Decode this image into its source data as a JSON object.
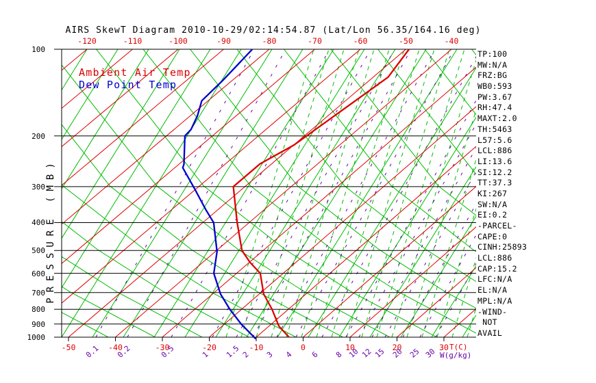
{
  "title": "AIRS SkewT Diagram 2010-10-29/02:14:54.87 (Lat/Lon 56.35/164.16 deg)",
  "colors": {
    "isotherm_red": "#dd0000",
    "adiabat_green": "#00bb00",
    "mixing_purple": "#6600aa",
    "ambient_red": "#dd0000",
    "dewpoint_blue": "#0000cc",
    "axis_black": "#000000"
  },
  "legend": {
    "ambient": "Ambient Air Temp",
    "dew": "Dew Point Temp"
  },
  "axes": {
    "pressure_label": "PRESSURE (MB)",
    "pressure_ticks": [
      100,
      200,
      300,
      400,
      500,
      600,
      700,
      800,
      900,
      1000
    ],
    "top_temp_ticks": [
      -120,
      -110,
      -100,
      -90,
      -80,
      -70,
      -60,
      -50,
      -40
    ],
    "bottom_temp_ticks": [
      -50,
      -40,
      -30,
      -20,
      -10,
      0,
      10,
      20,
      30
    ],
    "bottom_temp_unit": "T(C)",
    "mixing_ratio_ticks": [
      "0.1",
      "0.2",
      "0.5",
      "1",
      "1.5",
      "2",
      "3",
      "4",
      "6",
      "8",
      "10",
      "12",
      "15",
      "20",
      "25",
      "30"
    ],
    "mixing_ratio_unit": "W(g/kg)"
  },
  "stats": {
    "items": [
      "TP:100",
      "MW:N/A",
      "FRZ:BG",
      "WB0:593",
      "PW:3.67",
      "RH:47.4",
      "MAXT:2.0",
      "TH:5463",
      "L57:5.6",
      "LCL:886",
      "LI:13.6",
      "SI:12.2",
      "TT:37.3",
      "KI:267",
      "SW:N/A",
      "EI:0.2",
      "-PARCEL-",
      "CAPE:0",
      "CINH:25893",
      "LCL:886",
      "CAP:15.2",
      "LFC:N/A",
      "EL:N/A",
      "MPL:N/A",
      "-WIND-",
      " NOT",
      "AVAIL"
    ]
  },
  "chart_data": {
    "type": "line",
    "title": "AIRS SkewT Diagram 2010-10-29/02:14:54.87 (Lat/Lon 56.35/164.16 deg)",
    "xlabel": "T(C)",
    "ylabel": "PRESSURE (MB)",
    "y_axis": {
      "scale": "log",
      "range_mb": [
        100,
        1000
      ],
      "inverted": true
    },
    "x_axis": {
      "range_c_at_surface": [
        -51,
        37
      ],
      "skew": "isotherms slant up-right"
    },
    "grid": {
      "isotherms_c_step": 10,
      "mixing_ratio_g_kg": [
        0.1,
        0.2,
        0.5,
        1,
        1.5,
        2,
        3,
        4,
        6,
        8,
        10,
        12,
        15,
        20,
        25,
        30
      ]
    },
    "legend_position": "top-left inside plot",
    "series": [
      {
        "name": "Ambient Air Temp",
        "units": {
          "p": "mb",
          "T": "C"
        },
        "points": [
          [
            1000,
            -3.0
          ],
          [
            916,
            -7.9
          ],
          [
            800,
            -13.6
          ],
          [
            708,
            -19.2
          ],
          [
            600,
            -25.1
          ],
          [
            550,
            -30.0
          ],
          [
            500,
            -34.7
          ],
          [
            400,
            -42.7
          ],
          [
            300,
            -52.5
          ],
          [
            250,
            -52.5
          ],
          [
            215,
            -50.0
          ],
          [
            125,
            -46.9
          ],
          [
            100,
            -49.4
          ]
        ]
      },
      {
        "name": "Dew Point Temp",
        "units": {
          "p": "mb",
          "T": "C"
        },
        "points": [
          [
            1013,
            -9.7
          ],
          [
            900,
            -16.5
          ],
          [
            800,
            -22.6
          ],
          [
            708,
            -28.4
          ],
          [
            600,
            -35.0
          ],
          [
            505,
            -39.7
          ],
          [
            400,
            -47.7
          ],
          [
            360,
            -52.7
          ],
          [
            308,
            -59.8
          ],
          [
            258,
            -68.0
          ],
          [
            251,
            -68.6
          ],
          [
            200,
            -75.5
          ],
          [
            190,
            -75.8
          ],
          [
            170,
            -77.9
          ],
          [
            151,
            -80.7
          ],
          [
            128,
            -81.3
          ],
          [
            112,
            -82.1
          ],
          [
            100,
            -82.8
          ]
        ]
      }
    ]
  }
}
